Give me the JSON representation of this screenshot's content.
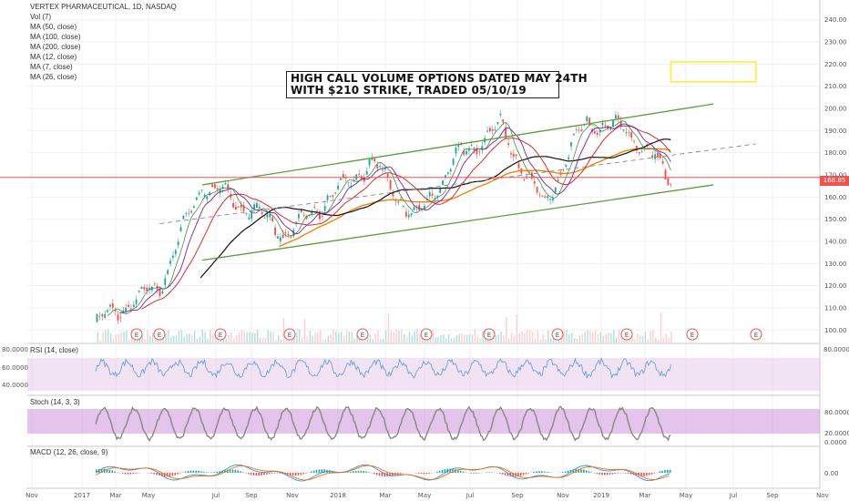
{
  "header": {
    "title": "VERTEX PHARMACEUTICAL, 1D, NASDAQ",
    "indicators": [
      "Vol (7)",
      "MA (50, close)",
      "MA (100, close)",
      "MA (200, close)",
      "MA (12, close)",
      "MA (7, close)",
      "MA (26, close)"
    ]
  },
  "annotation": {
    "line1": "HIGH CALL VOLUME OPTIONS DATED MAY 24TH",
    "line2": "WITH $210 STRIKE, TRADED 05/10/19"
  },
  "last_price_label": "168.85",
  "colors": {
    "channel": "#5d9c3b",
    "horizontal_line": "#ef5350",
    "ma_orange": "#f57c00",
    "ma_black": "#111111",
    "ma_red": "#d32f2f",
    "ma_purple": "#7b1fa2",
    "ma_green": "#2e7d32",
    "candle_up": "#26a69a",
    "candle_down": "#ef5350",
    "target_box": "#ffeb3b",
    "rsi_band": "#e1bee7",
    "stoch_band": "#ce93d8",
    "macd_line": "#2196f3",
    "signal_line": "#ff6d00"
  },
  "panels": {
    "rsi_label": "RSI (14, close)",
    "rsi_ticks": [
      "80.0000",
      "60.0000",
      "40.0000"
    ],
    "stoch_label": "Stoch (14, 3, 3)",
    "stoch_ticks": [
      "80.0000",
      "20.0000",
      "0.0000"
    ],
    "macd_label": "MACD (12, 26, close, 9)",
    "macd_ticks": [
      "0.00"
    ]
  },
  "earnings_marker": "E",
  "chart_data": {
    "type": "line",
    "title": "VERTEX PHARMACEUTICAL, 1D, NASDAQ",
    "y_axis_ticks": [
      "240.00",
      "230.00",
      "220.00",
      "210.00",
      "200.00",
      "190.00",
      "180.00",
      "170.00",
      "160.00",
      "150.00",
      "140.00",
      "130.00",
      "120.00",
      "110.00",
      "100.00"
    ],
    "ylim": [
      96,
      244
    ],
    "x_axis_ticks": [
      "Nov",
      "2017",
      "Mar",
      "May",
      "Jul",
      "Sep",
      "Nov",
      "2018",
      "Mar",
      "May",
      "Jul",
      "Sep",
      "Nov",
      "2019",
      "Mar",
      "May",
      "Jul",
      "Sep",
      "Nov"
    ],
    "horizontal_level": 168.85,
    "series": [
      {
        "name": "",
        "x": [
          "2017-02",
          "2017-05",
          "2017-07",
          "2017-09",
          "2017-11",
          "2018-01",
          "2018-03",
          "2018-05",
          "2018-07",
          "2018-09",
          "2018-11",
          "2019-01",
          "2019-03",
          "2019-05"
        ],
        "values": [
          103,
          120,
          166,
          156,
          143,
          160,
          176,
          150,
          178,
          192,
          156,
          194,
          190,
          168.85
        ]
      }
    ],
    "channel_upper": {
      "x": [
        "2017-07",
        "2019-07"
      ],
      "values": [
        165.5,
        202
      ]
    },
    "channel_lower": {
      "x": [
        "2017-07",
        "2019-07"
      ],
      "values": [
        131.5,
        165.5
      ]
    },
    "channel_mid": {
      "x": [
        "2017-05",
        "2019-09"
      ],
      "values": [
        148,
        184
      ]
    },
    "target_box": {
      "x": [
        "2019-05",
        "2019-09"
      ],
      "values": [
        212,
        221
      ]
    }
  }
}
